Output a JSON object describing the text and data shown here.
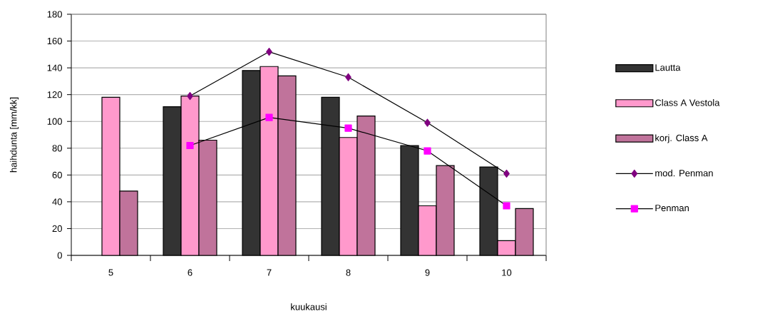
{
  "chart_data": {
    "type": "bar",
    "xlabel": "kuukausi",
    "ylabel": "haihdunta [mm/kk]",
    "categories": [
      "5",
      "6",
      "7",
      "8",
      "9",
      "10"
    ],
    "series": [
      {
        "name": "Lautta",
        "color": "#333333",
        "values": [
          null,
          111,
          138,
          118,
          82,
          66
        ]
      },
      {
        "name": "Class A Vestola",
        "color": "#ff99cc",
        "values": [
          118,
          119,
          141,
          88,
          37,
          11
        ]
      },
      {
        "name": "korj. Class A",
        "color": "#c0739b",
        "values": [
          48,
          86,
          134,
          104,
          67,
          35
        ]
      },
      {
        "name": "mod. Penman",
        "type": "line",
        "color": "#800080",
        "marker": "diamond",
        "values": [
          null,
          119,
          152,
          133,
          99,
          61
        ]
      },
      {
        "name": "Penman",
        "type": "line",
        "color": "#ff00ff",
        "marker": "square",
        "values": [
          null,
          82,
          103,
          95,
          78,
          37
        ]
      }
    ],
    "ylim": [
      0,
      180
    ],
    "yticks": [
      0,
      20,
      40,
      60,
      80,
      100,
      120,
      140,
      160,
      180
    ],
    "grid": "y",
    "legend": "right"
  }
}
